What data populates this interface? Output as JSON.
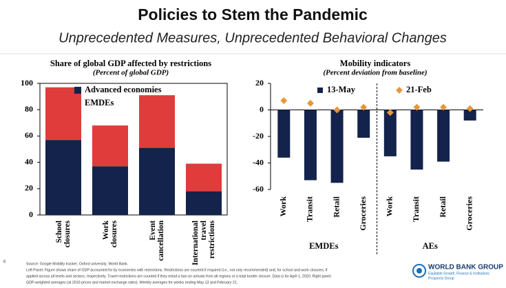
{
  "title": "Policies to Stem the Pandemic",
  "subtitle": "Unprecedented Measures, Unprecedented Behavioral Changes",
  "chart_data": [
    {
      "type": "stacked-bar",
      "title": "Share of global GDP affected by restrictions",
      "subtitle": "(Percent of global GDP)",
      "categories": [
        [
          "School",
          "closures"
        ],
        [
          "Work",
          "closures"
        ],
        [
          "Event",
          "cancellation"
        ],
        [
          "International",
          "travel",
          "restrictions"
        ]
      ],
      "series": [
        {
          "name": "Advanced economies",
          "color": "#14234b",
          "values": [
            57,
            37,
            51,
            18
          ]
        },
        {
          "name": "EMDEs",
          "color": "#e03c3c",
          "values": [
            40,
            31,
            40,
            21
          ]
        }
      ],
      "ylim": [
        0,
        100
      ],
      "yticks": [
        0,
        20,
        40,
        60,
        80,
        100
      ],
      "legend": "top-left"
    },
    {
      "type": "bar",
      "title": "Mobility indicators",
      "subtitle": "(Percent deviation from baseline)",
      "categories": [
        "Work",
        "Transit",
        "Retail",
        "Groceries",
        "Work",
        "Transit",
        "Retail",
        "Groceries"
      ],
      "groups": [
        "EMDEs",
        "AEs"
      ],
      "series": [
        {
          "name": "13-May",
          "color": "#14234b",
          "style": "bar",
          "values": [
            -36,
            -53,
            -55,
            -21,
            -35,
            -45,
            -39,
            -8
          ]
        },
        {
          "name": "21-Feb",
          "color": "#e8963a",
          "style": "diamond",
          "values": [
            7,
            5,
            0,
            2,
            -2,
            2,
            2,
            1
          ]
        }
      ],
      "ylim": [
        -60,
        20
      ],
      "yticks": [
        -60,
        -40,
        -20,
        0,
        20
      ],
      "legend": "top"
    }
  ],
  "footnote": [
    "Source: Google Mobility tracker; Oxford university; World Bank.",
    "Left Panel: Figure shows share of GDP accounted for by economies with restrictions. Restrictions are counted if required (i.e., not only recommended) and, for school and work closures, if",
    "applied across all levels and sectors, respectively. Travel restrictions are counted if they entail a ban on arrivals from all regions or a total border closure. Data is for April 1, 2020. Right panel:",
    "GDP-weighted averages (at 2010 prices and market exchange rates). Weekly averages for weeks ending May 13 and February 21."
  ],
  "page_number": "6",
  "logo": {
    "name": "WORLD BANK GROUP",
    "line1": "Equitable Growth, Finance & Institutions",
    "line2": "Prospects Group"
  }
}
